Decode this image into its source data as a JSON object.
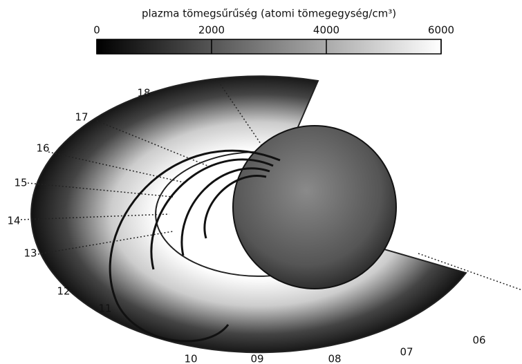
{
  "colorbar": {
    "title": "plazma tömegsűrűség (atomi tömegegység/cm³)",
    "lim": [
      0,
      6000
    ],
    "ticks": [
      0,
      2000,
      4000,
      6000
    ]
  },
  "local_time_labels": [
    "06",
    "07",
    "08",
    "09",
    "10",
    "11",
    "12",
    "13",
    "14",
    "15",
    "16",
    "17",
    "18"
  ]
}
